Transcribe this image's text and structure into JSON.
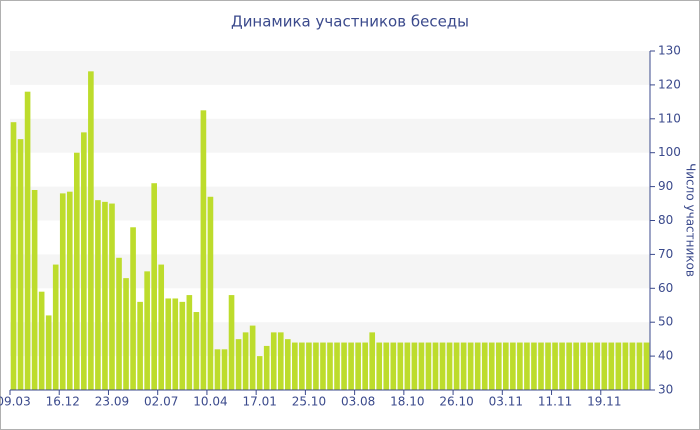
{
  "chart_data": {
    "type": "bar",
    "title": "Динамика участников беседы",
    "y_label": "Число участников",
    "categories": [
      "09.03",
      null,
      null,
      null,
      null,
      null,
      null,
      "16.12",
      null,
      null,
      null,
      null,
      null,
      null,
      "23.09",
      null,
      null,
      null,
      null,
      null,
      null,
      "02.07",
      null,
      null,
      null,
      null,
      null,
      null,
      "10.04",
      null,
      null,
      null,
      null,
      null,
      null,
      "17.01",
      null,
      null,
      null,
      null,
      null,
      null,
      "25.10",
      null,
      null,
      null,
      null,
      null,
      null,
      "03.08",
      null,
      null,
      null,
      null,
      null,
      null,
      "18.10",
      null,
      null,
      null,
      null,
      null,
      null,
      "26.10",
      null,
      null,
      null,
      null,
      null,
      null,
      "03.11",
      null,
      null,
      null,
      null,
      null,
      null,
      "11.11",
      null,
      null,
      null,
      null,
      null,
      null,
      "19.11",
      null,
      null,
      null,
      null,
      null,
      null
    ],
    "values": [
      109,
      104,
      118,
      89,
      59,
      52,
      67,
      88,
      88.5,
      100,
      106,
      124,
      86,
      85.5,
      85,
      69,
      63,
      78,
      56,
      65,
      91,
      67,
      57,
      57,
      56,
      58,
      53,
      112.5,
      87,
      42,
      42,
      58,
      45,
      47,
      49,
      40,
      43,
      47,
      47,
      45,
      44,
      44,
      44,
      44,
      44,
      44,
      44,
      44,
      44,
      44,
      44,
      47,
      44,
      44,
      44,
      44,
      44,
      44,
      44,
      44,
      44,
      44,
      44,
      44,
      44,
      44,
      44,
      44,
      44,
      44,
      44,
      44,
      44,
      44,
      44,
      44,
      44,
      44,
      44,
      44,
      44,
      44,
      44,
      44,
      44,
      44,
      44,
      44,
      44,
      44,
      44
    ],
    "color": "#bddc2c",
    "ylim": [
      30,
      130
    ],
    "yticks": [
      30,
      40,
      50,
      60,
      70,
      80,
      90,
      100,
      110,
      120,
      130
    ],
    "grid": true,
    "y_axis_side": "right"
  }
}
